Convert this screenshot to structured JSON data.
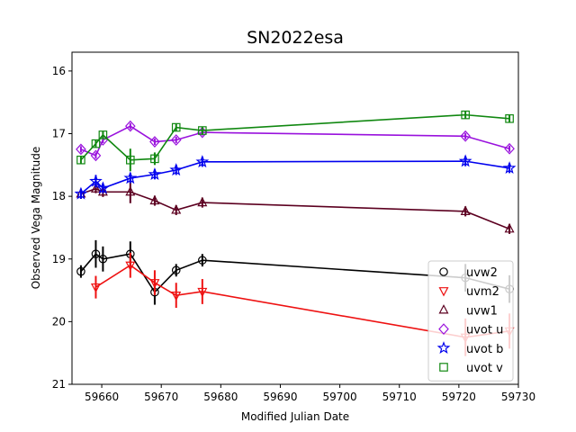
{
  "chart_data": {
    "type": "line",
    "title": "SN2022esa",
    "xlabel": "Modified Julian Date",
    "ylabel": "Observed Vega Magnitude",
    "xlim": [
      59655,
      59730
    ],
    "ylim": [
      21,
      15.7
    ],
    "y_inverted": true,
    "xticks": [
      59660,
      59670,
      59680,
      59690,
      59700,
      59710,
      59720,
      59730
    ],
    "yticks": [
      16,
      17,
      18,
      19,
      20,
      21
    ],
    "legend_position": "lower-right",
    "series": [
      {
        "name": "uvw2",
        "color": "#000000",
        "marker": "circle",
        "x": [
          59656.5,
          59659.0,
          59660.2,
          59664.8,
          59668.9,
          59672.5,
          59676.9,
          59721.1,
          59728.5
        ],
        "y": [
          19.2,
          18.92,
          19.0,
          18.92,
          19.53,
          19.18,
          19.02,
          19.3,
          19.48
        ],
        "yerr": [
          0.1,
          0.22,
          0.2,
          0.2,
          0.2,
          0.1,
          0.1,
          0.22,
          0.22
        ]
      },
      {
        "name": "uvm2",
        "color": "#ee1111",
        "marker": "triangle-down",
        "x": [
          59659.0,
          59664.8,
          59668.9,
          59672.5,
          59676.9,
          59721.1,
          59728.5
        ],
        "y": [
          19.45,
          19.1,
          19.38,
          19.58,
          19.52,
          20.25,
          20.15
        ],
        "yerr": [
          0.18,
          0.2,
          0.2,
          0.2,
          0.2,
          0.3,
          0.28
        ]
      },
      {
        "name": "uvw1",
        "color": "#5c0020",
        "marker": "triangle-up",
        "x": [
          59656.5,
          59659.0,
          59660.2,
          59664.8,
          59668.9,
          59672.5,
          59676.9,
          59721.1,
          59728.5
        ],
        "y": [
          17.96,
          17.88,
          17.93,
          17.93,
          18.07,
          18.22,
          18.1,
          18.24,
          18.52
        ],
        "yerr": [
          0.08,
          0.07,
          0.08,
          0.18,
          0.08,
          0.08,
          0.08,
          0.08,
          0.08
        ]
      },
      {
        "name": "uvot u",
        "color": "#9911dd",
        "marker": "diamond",
        "x": [
          59656.5,
          59659.0,
          59660.2,
          59664.8,
          59668.9,
          59672.5,
          59676.9,
          59721.1,
          59728.5
        ],
        "y": [
          17.25,
          17.35,
          17.1,
          16.88,
          17.13,
          17.1,
          16.98,
          17.04,
          17.24
        ],
        "yerr": [
          0.05,
          0.05,
          0.05,
          0.05,
          0.05,
          0.05,
          0.05,
          0.05,
          0.05
        ]
      },
      {
        "name": "uvot b",
        "color": "#0000ee",
        "marker": "star",
        "x": [
          59656.5,
          59659.0,
          59660.2,
          59664.8,
          59668.9,
          59672.5,
          59676.9,
          59721.1,
          59728.5
        ],
        "y": [
          17.96,
          17.76,
          17.87,
          17.71,
          17.65,
          17.58,
          17.45,
          17.44,
          17.55
        ],
        "yerr": [
          0.08,
          0.1,
          0.08,
          0.08,
          0.08,
          0.08,
          0.08,
          0.08,
          0.08
        ]
      },
      {
        "name": "uvot v",
        "color": "#118811",
        "marker": "square",
        "x": [
          59656.5,
          59659.0,
          59660.2,
          59664.8,
          59668.9,
          59672.5,
          59676.9,
          59721.1,
          59728.5
        ],
        "y": [
          17.42,
          17.16,
          17.02,
          17.42,
          17.4,
          16.9,
          16.95,
          16.7,
          16.76
        ],
        "yerr": [
          0.06,
          0.06,
          0.06,
          0.18,
          0.1,
          0.06,
          0.06,
          0.06,
          0.06
        ]
      }
    ]
  }
}
